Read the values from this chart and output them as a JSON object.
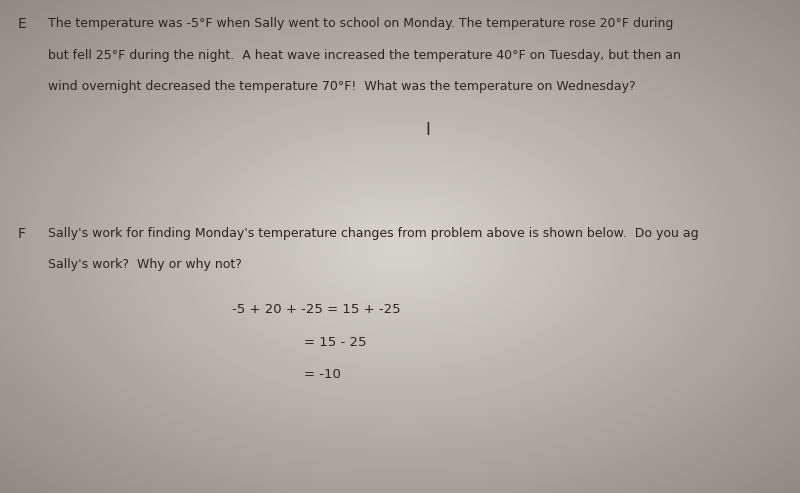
{
  "background_color_center": "#d8d4cc",
  "background_color_edge": "#7a7570",
  "text_color": "#2a2520",
  "label_E": "E",
  "label_F": "F",
  "line_E1": "The temperature was -5°F when Sally went to school on Monday. The temperature rose 20°F during",
  "line_E2": "but fell 25°F during the night.  A heat wave increased the temperature 40°F on Tuesday, but then an",
  "line_E3": "wind overnight decreased the temperature 70°F!  What was the temperature on Wednesday?",
  "cursor_symbol": "I",
  "line_F1": "Sally's work for finding Monday's temperature changes from problem above is shown below.  Do you ag",
  "line_F2": "Sally's work?  Why or why not?",
  "math_line1": "-5 + 20 + -25 = 15 + -25",
  "math_line2": "= 15 - 25",
  "math_line3": "= -10",
  "font_size_text": 9.0,
  "font_size_math": 9.5,
  "font_size_label": 10.0,
  "font_size_cursor": 12
}
